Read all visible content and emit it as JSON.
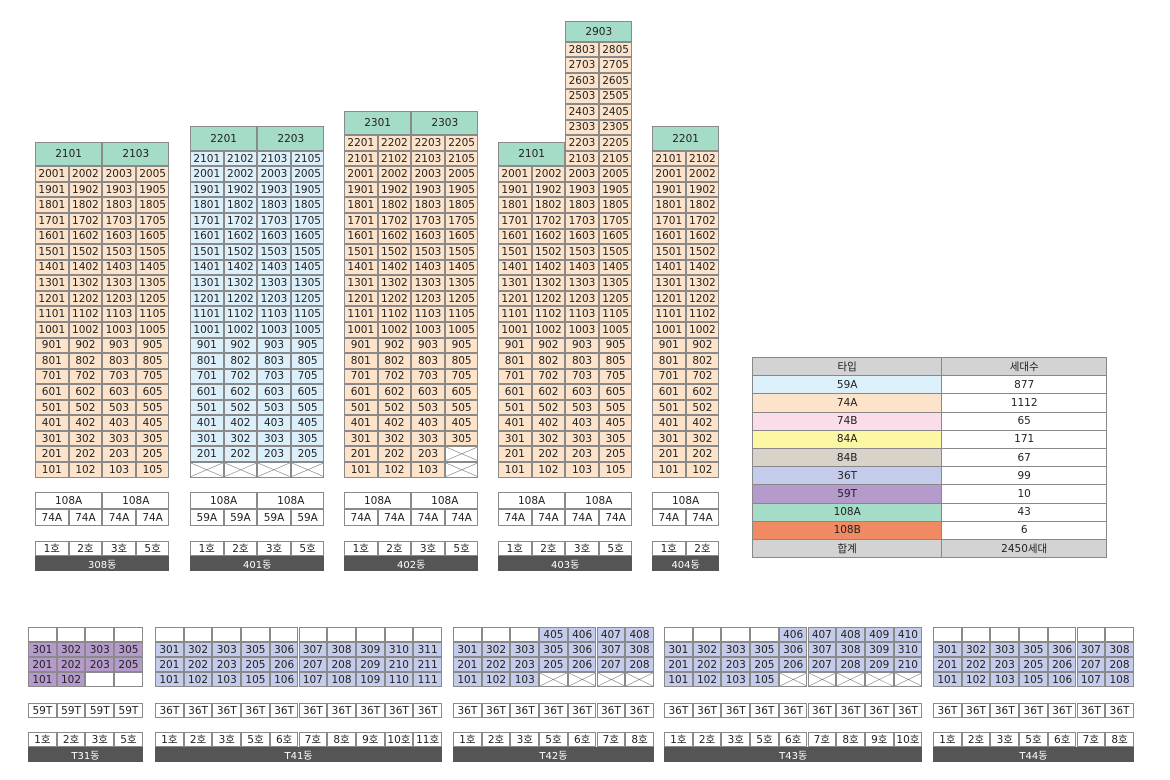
{
  "colors": {
    "59A": "#dcf0fb",
    "74A": "#fde3c9",
    "74B": "#fbdde9",
    "84A": "#fcf7a4",
    "84B": "#d9d2c8",
    "36T": "#c5cbea",
    "59T": "#b59bcc",
    "108A": "#a4dcc8",
    "108B": "#f08a62",
    "label_bg": "#555555"
  },
  "upper_buildings": [
    {
      "name": "308동",
      "cols": [
        "1호",
        "2호",
        "3호",
        "5호"
      ],
      "units": [
        "74A",
        "74A",
        "74A",
        "74A"
      ],
      "penthouse": {
        "floor": 21,
        "labels": [
          "2101",
          "2103"
        ]
      },
      "type": "74A",
      "max_floor": 20,
      "blanks": []
    },
    {
      "name": "401동",
      "cols": [
        "1호",
        "2호",
        "3호",
        "5호"
      ],
      "units": [
        "59A",
        "59A",
        "59A",
        "59A"
      ],
      "penthouse": {
        "floor": 22,
        "labels": [
          "2201",
          "2203"
        ]
      },
      "type": "59A",
      "max_floor": 21,
      "blanks": [
        [
          1,
          "1호"
        ],
        [
          1,
          "2호"
        ],
        [
          1,
          "3호"
        ],
        [
          1,
          "5호"
        ]
      ]
    },
    {
      "name": "402동",
      "cols": [
        "1호",
        "2호",
        "3호",
        "5호"
      ],
      "units": [
        "74A",
        "74A",
        "74A",
        "74A"
      ],
      "penthouse": {
        "floor": 23,
        "labels": [
          "2301",
          "2303"
        ]
      },
      "type": "74A",
      "max_floor": 22,
      "blanks": [
        [
          1,
          "5호"
        ],
        [
          2,
          "5호"
        ]
      ]
    },
    {
      "name": "403동",
      "cols": [
        "1호",
        "2호",
        "3호",
        "5호"
      ],
      "units": [
        "74A",
        "74A",
        "74A",
        "74A"
      ],
      "penthouse": {
        "floor": 21,
        "labels": [
          "2101"
        ]
      },
      "type": "74A",
      "max_floor": 20,
      "tower_top": 29,
      "tower_cols": [
        "3호",
        "5호"
      ],
      "tower_label": "2903",
      "blanks": []
    },
    {
      "name": "404동",
      "cols": [
        "1호",
        "2호"
      ],
      "units": [
        "74A",
        "74A"
      ],
      "penthouse": {
        "floor": 22,
        "labels": [
          "2201"
        ]
      },
      "type": "74A",
      "max_floor": 21,
      "blanks": []
    }
  ],
  "type_row_label": "108A",
  "legend": {
    "headers": [
      "타입",
      "세대수"
    ],
    "rows": [
      [
        "59A",
        "877"
      ],
      [
        "74A",
        "1112"
      ],
      [
        "74B",
        "65"
      ],
      [
        "84A",
        "171"
      ],
      [
        "84B",
        "67"
      ],
      [
        "36T",
        "99"
      ],
      [
        "59T",
        "10"
      ],
      [
        "108A",
        "43"
      ],
      [
        "108B",
        "6"
      ]
    ],
    "total": [
      "합계",
      "2450세대"
    ]
  },
  "lower_buildings": [
    {
      "name": "T31동",
      "type": "59T",
      "cols": [
        "1호",
        "2호",
        "3호",
        "5호"
      ],
      "rows": [
        [
          "301",
          "302",
          "303",
          "305"
        ],
        [
          "201",
          "202",
          "203",
          "205"
        ],
        [
          "101",
          "102",
          "",
          ""
        ]
      ],
      "top_row": [
        "",
        "",
        "",
        ""
      ],
      "units": [
        "59T",
        "59T",
        "59T",
        "59T"
      ]
    },
    {
      "name": "T41동",
      "type": "36T",
      "cols": [
        "1호",
        "2호",
        "3호",
        "5호",
        "6호",
        "7호",
        "8호",
        "9호",
        "10호",
        "11호"
      ],
      "rows": [
        [
          "301",
          "302",
          "303",
          "305",
          "306",
          "307",
          "308",
          "309",
          "310",
          "311"
        ],
        [
          "201",
          "202",
          "203",
          "205",
          "206",
          "207",
          "208",
          "209",
          "210",
          "211"
        ],
        [
          "101",
          "102",
          "103",
          "105",
          "106",
          "107",
          "108",
          "109",
          "110",
          "111"
        ]
      ],
      "top_row": [
        "",
        "",
        "",
        "",
        "",
        "",
        "",
        "",
        "",
        ""
      ],
      "units": [
        "36T",
        "36T",
        "36T",
        "36T",
        "36T",
        "36T",
        "36T",
        "36T",
        "36T",
        "36T"
      ]
    },
    {
      "name": "T42동",
      "type": "36T",
      "cols": [
        "1호",
        "2호",
        "3호",
        "5호",
        "6호",
        "7호",
        "8호"
      ],
      "rows": [
        [
          "301",
          "302",
          "303",
          "305",
          "306",
          "307",
          "308"
        ],
        [
          "201",
          "202",
          "203",
          "205",
          "206",
          "207",
          "208"
        ],
        [
          "101",
          "102",
          "103",
          "X",
          "X",
          "X",
          "X"
        ]
      ],
      "top_row": [
        "",
        "",
        "",
        "405",
        "406",
        "407",
        "408"
      ],
      "units": [
        "36T",
        "36T",
        "36T",
        "36T",
        "36T",
        "36T",
        "36T"
      ]
    },
    {
      "name": "T43동",
      "type": "36T",
      "cols": [
        "1호",
        "2호",
        "3호",
        "5호",
        "6호",
        "7호",
        "8호",
        "9호",
        "10호"
      ],
      "rows": [
        [
          "301",
          "302",
          "303",
          "305",
          "306",
          "307",
          "308",
          "309",
          "310"
        ],
        [
          "201",
          "202",
          "203",
          "205",
          "206",
          "207",
          "208",
          "209",
          "210"
        ],
        [
          "101",
          "102",
          "103",
          "105",
          "X",
          "X",
          "X",
          "X",
          "X"
        ]
      ],
      "top_row": [
        "",
        "",
        "",
        "",
        "406",
        "407",
        "408",
        "409",
        "410"
      ],
      "units": [
        "36T",
        "36T",
        "36T",
        "36T",
        "36T",
        "36T",
        "36T",
        "36T",
        "36T"
      ]
    },
    {
      "name": "T44동",
      "type": "36T",
      "cols": [
        "1호",
        "2호",
        "3호",
        "5호",
        "6호",
        "7호",
        "8호"
      ],
      "rows": [
        [
          "301",
          "302",
          "303",
          "305",
          "306",
          "307",
          "308"
        ],
        [
          "201",
          "202",
          "203",
          "205",
          "206",
          "207",
          "208"
        ],
        [
          "101",
          "102",
          "103",
          "105",
          "106",
          "107",
          "108"
        ]
      ],
      "top_row": [
        "",
        "",
        "",
        "",
        "",
        "",
        ""
      ],
      "units": [
        "36T",
        "36T",
        "36T",
        "36T",
        "36T",
        "36T",
        "36T"
      ]
    }
  ]
}
